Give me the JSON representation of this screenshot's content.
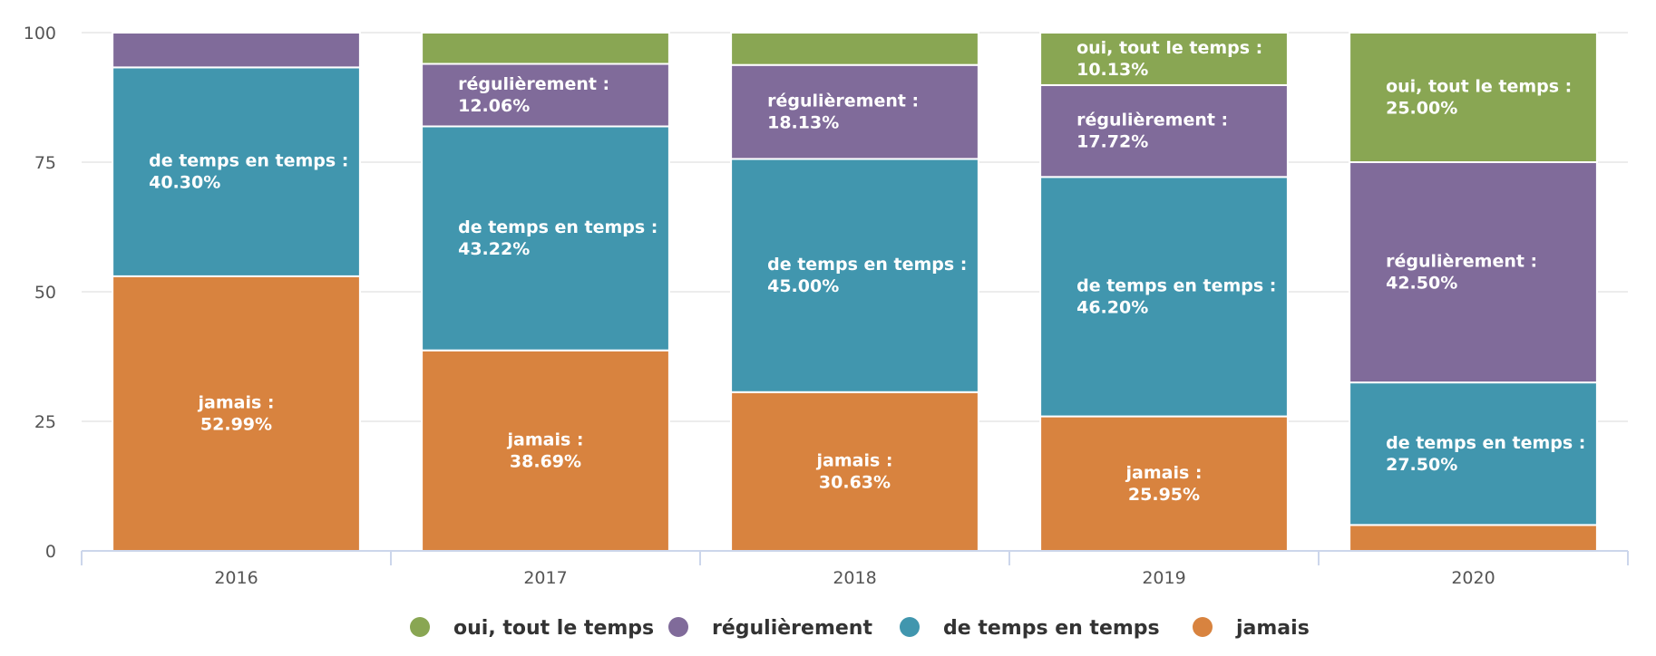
{
  "chart_data": {
    "type": "bar",
    "stacked": true,
    "title": "",
    "xlabel": "",
    "ylabel": "",
    "ylim": [
      0,
      100
    ],
    "y_ticks": [
      "0",
      "25",
      "50",
      "75",
      "100"
    ],
    "categories": [
      "2016",
      "2017",
      "2018",
      "2019",
      "2020"
    ],
    "grid": true,
    "legend_position": "bottom",
    "series": [
      {
        "name": "jamais",
        "color": "#d8833f",
        "values": [
          52.99,
          38.69,
          30.63,
          25.95,
          5.0
        ],
        "labels": [
          "jamais :\n52.99%",
          "jamais :\n38.69%",
          "jamais :\n30.63%",
          "jamais :\n25.95%",
          null
        ],
        "label_align": "center"
      },
      {
        "name": "de temps en temps",
        "color": "#4196ae",
        "values": [
          40.3,
          43.22,
          45.0,
          46.2,
          27.5
        ],
        "labels": [
          "de temps en temps :\n40.30%",
          "de temps en temps :\n43.22%",
          "de temps en temps :\n45.00%",
          "de temps en temps :\n46.20%",
          "de temps en temps :\n27.50%"
        ],
        "label_align": "left"
      },
      {
        "name": "régulièrement",
        "color": "#806b9a",
        "values": [
          6.71,
          12.06,
          18.13,
          17.72,
          42.5
        ],
        "labels": [
          null,
          "régulièrement :\n12.06%",
          "régulièrement :\n18.13%",
          "régulièrement :\n17.72%",
          "régulièrement :\n42.50%"
        ],
        "label_align": "left"
      },
      {
        "name": "oui, tout le temps",
        "color": "#89a653",
        "values": [
          0,
          6.03,
          6.24,
          10.13,
          25.0
        ],
        "labels": [
          null,
          null,
          null,
          "oui, tout le temps :\n10.13%",
          "oui, tout le temps :\n25.00%"
        ],
        "label_align": "left"
      }
    ],
    "legend": [
      {
        "name": "oui, tout le temps",
        "color": "#89a653"
      },
      {
        "name": "régulièrement",
        "color": "#806b9a"
      },
      {
        "name": "de temps en temps",
        "color": "#4196ae"
      },
      {
        "name": "jamais",
        "color": "#d8833f"
      }
    ]
  }
}
